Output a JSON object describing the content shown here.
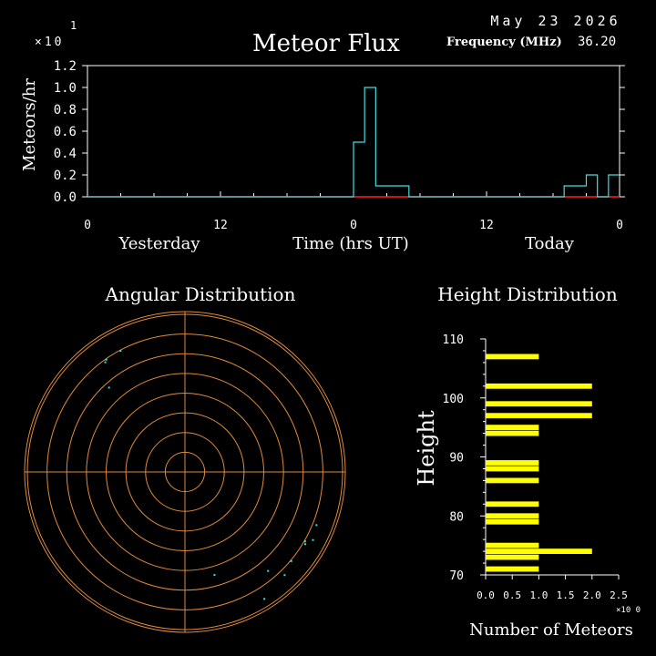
{
  "header": {
    "date": "May 23 2026",
    "freq_label": "Frequency (MHz)",
    "freq_value": "36.20",
    "exp_top": "1",
    "exp_base": "×10"
  },
  "colors": {
    "background": "#000000",
    "flux_line": "#40e0e0",
    "baseline": "#ff2020",
    "polar_rings": "#e08a3a",
    "points": "#40e0e0",
    "height_bars": "#ffff00"
  },
  "chart_data": [
    {
      "type": "line",
      "title": "Meteor Flux",
      "xlabel": "Time (hrs UT)",
      "ylabel": "Meteors/hr",
      "y_multiplier_label": "×10 1",
      "ylim": [
        0,
        1.2
      ],
      "yticks": [
        "0.0",
        "0.2",
        "0.4",
        "0.6",
        "0.8",
        "1.0",
        "1.2"
      ],
      "xticks": [
        "0",
        "12",
        "0",
        "12",
        "0"
      ],
      "day_labels": [
        "Yesterday",
        "Today"
      ],
      "step_series": [
        {
          "start_hr": 0,
          "end_hr": 24,
          "value": 0.0
        },
        {
          "start_hr": 24,
          "end_hr": 25,
          "value": 0.5
        },
        {
          "start_hr": 25,
          "end_hr": 26,
          "value": 1.0
        },
        {
          "start_hr": 26,
          "end_hr": 29,
          "value": 0.1
        },
        {
          "start_hr": 29,
          "end_hr": 43,
          "value": 0.0
        },
        {
          "start_hr": 43,
          "end_hr": 45,
          "value": 0.1
        },
        {
          "start_hr": 45,
          "end_hr": 46,
          "value": 0.2
        },
        {
          "start_hr": 46,
          "end_hr": 47,
          "value": 0.0
        },
        {
          "start_hr": 47,
          "end_hr": 48,
          "value": 0.2
        }
      ]
    },
    {
      "type": "scatter",
      "title": "Angular Distribution",
      "rings": 8,
      "points": [
        {
          "az": 332,
          "r": 0.87
        },
        {
          "az": 324,
          "r": 0.86
        },
        {
          "az": 325,
          "r": 0.87
        },
        {
          "az": 318,
          "r": 0.72
        },
        {
          "az": 112,
          "r": 0.9
        },
        {
          "az": 118,
          "r": 0.92
        },
        {
          "az": 120,
          "r": 0.88
        },
        {
          "az": 121,
          "r": 0.89
        },
        {
          "az": 130,
          "r": 0.88
        },
        {
          "az": 136,
          "r": 0.91
        },
        {
          "az": 140,
          "r": 0.82
        },
        {
          "az": 148,
          "r": 0.95
        },
        {
          "az": 164,
          "r": 0.68
        }
      ]
    },
    {
      "type": "bar",
      "orientation": "horizontal",
      "title": "Height Distribution",
      "xlabel": "Number of Meteors",
      "ylabel": "Height",
      "x_multiplier_label": "×10 0",
      "xlim": [
        0,
        2.5
      ],
      "ylim": [
        70,
        110
      ],
      "xticks": [
        "0.0",
        "0.5",
        "1.0",
        "1.5",
        "2.0",
        "2.5"
      ],
      "yticks": [
        "70",
        "80",
        "90",
        "100",
        "110"
      ],
      "bars": [
        {
          "height": 71,
          "count": 1
        },
        {
          "height": 73,
          "count": 1
        },
        {
          "height": 74,
          "count": 2
        },
        {
          "height": 75,
          "count": 1
        },
        {
          "height": 79,
          "count": 1
        },
        {
          "height": 80,
          "count": 1
        },
        {
          "height": 82,
          "count": 1
        },
        {
          "height": 86,
          "count": 1
        },
        {
          "height": 88,
          "count": 1
        },
        {
          "height": 89,
          "count": 1
        },
        {
          "height": 94,
          "count": 1
        },
        {
          "height": 95,
          "count": 1
        },
        {
          "height": 97,
          "count": 2
        },
        {
          "height": 99,
          "count": 2
        },
        {
          "height": 102,
          "count": 2
        },
        {
          "height": 107,
          "count": 1
        }
      ]
    }
  ]
}
